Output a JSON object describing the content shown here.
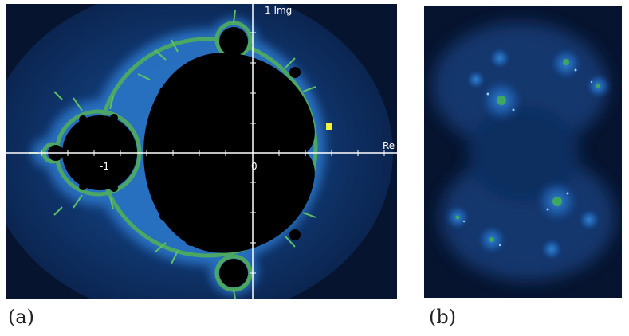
{
  "panel_a": {
    "caption": "(a)",
    "axis": {
      "imag_label": "1 Img",
      "real_label": "Re",
      "tick_minus_one": "-1",
      "tick_zero": "0"
    },
    "colors": {
      "background": "#0a1b3c",
      "set": "#000000",
      "boundary": "#4fae5a",
      "highlight": "#f2f23a"
    }
  },
  "panel_b": {
    "caption": "(b)",
    "colors": {
      "background": "#0a1b3c",
      "glow": "#2a6fbf",
      "core": "#3ca860"
    }
  }
}
